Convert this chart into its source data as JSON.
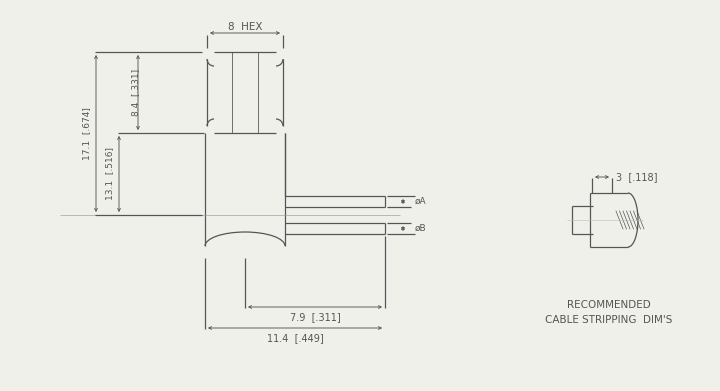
{
  "bg_color": "#f0f0eb",
  "lc": "#555555",
  "lw": 0.9,
  "dim_8hex": "8  HEX",
  "dim_171": "17.1  [.674]",
  "dim_131": "13.1  [.516]",
  "dim_84": "8.4  [.331]",
  "dim_79": "7.9  [.311]",
  "dim_114": "11.4  [.449]",
  "dim_3": "3  [.118]",
  "dA": "øA",
  "dB": "øB",
  "rec1": "RECOMMENDED",
  "rec2": "CABLE STRIPPING  DIM'S",
  "fs_dim": 7.0,
  "fs_label": 7.5
}
